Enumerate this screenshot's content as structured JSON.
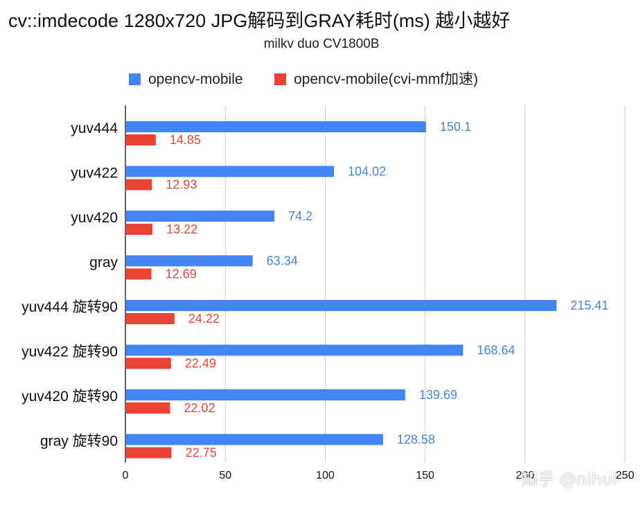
{
  "title": "cv::imdecode 1280x720 JPG解码到GRAY耗时(ms) 越小越好",
  "subtitle": "milkv duo CV1800B",
  "watermark": "知乎 @nihui",
  "colors": {
    "series1": "#4285f4",
    "series2": "#ea4335",
    "grid": "#cccccc",
    "axis": "#333333",
    "label1": "#4a86d4",
    "label2": "#d9483b"
  },
  "chart_data": {
    "type": "bar",
    "orientation": "horizontal",
    "categories": [
      "yuv444",
      "yuv422",
      "yuv420",
      "gray",
      "yuv444 旋转90",
      "yuv422 旋转90",
      "yuv420 旋转90",
      "gray 旋转90"
    ],
    "series": [
      {
        "name": "opencv-mobile",
        "values": [
          150.1,
          104.02,
          74.2,
          63.34,
          215.41,
          168.64,
          139.69,
          128.58
        ]
      },
      {
        "name": "opencv-mobile(cvi-mmf加速)",
        "values": [
          14.85,
          12.93,
          13.22,
          12.69,
          24.22,
          22.49,
          22.02,
          22.75
        ]
      }
    ],
    "data_labels": [
      [
        "150.1",
        "104.02",
        "74.2",
        "63.34",
        "215.41",
        "168.64",
        "139.69",
        "128.58"
      ],
      [
        "14.85",
        "12.93",
        "13.22",
        "12.69",
        "24.22",
        "22.49",
        "22.02",
        "22.75"
      ]
    ],
    "xlim": [
      0,
      250
    ],
    "xticks": [
      "0",
      "50",
      "100",
      "150",
      "200",
      "250"
    ],
    "legend": "top-center",
    "grid": true
  }
}
